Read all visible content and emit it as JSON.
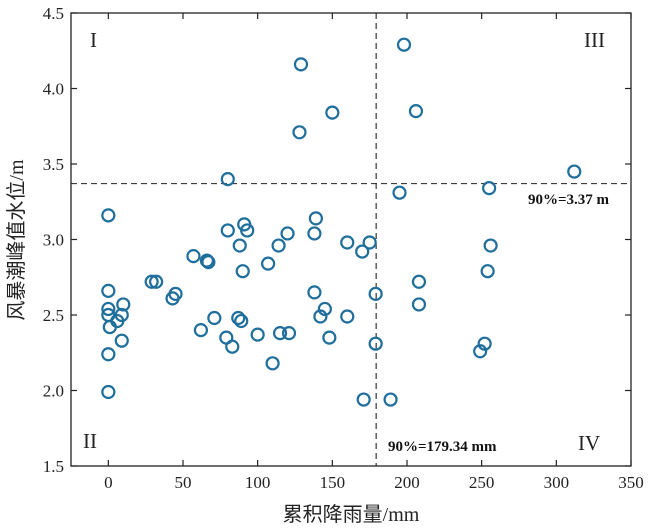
{
  "chart_data": {
    "type": "scatter",
    "xlabel": "累积降雨量/mm",
    "ylabel": "风暴潮峰值水位/m",
    "xlim": [
      -25,
      350
    ],
    "ylim": [
      1.5,
      4.5
    ],
    "xticks": [
      0,
      50,
      100,
      150,
      200,
      250,
      300,
      350
    ],
    "yticks": [
      1.5,
      2.0,
      2.5,
      3.0,
      3.5,
      4.0,
      4.5
    ],
    "grid": false,
    "marker_color": "#1f6e9c",
    "thresholds": {
      "x": 179.34,
      "y": 3.37,
      "x_label": "90%=179.34 mm",
      "y_label": "90%=3.37 m"
    },
    "quadrants": [
      "I",
      "II",
      "III",
      "IV"
    ],
    "points": [
      [
        0,
        3.16
      ],
      [
        0,
        2.66
      ],
      [
        0,
        2.54
      ],
      [
        0,
        2.5
      ],
      [
        1,
        2.42
      ],
      [
        0,
        2.24
      ],
      [
        0,
        1.99
      ],
      [
        6,
        2.46
      ],
      [
        9,
        2.5
      ],
      [
        10,
        2.57
      ],
      [
        9,
        2.33
      ],
      [
        29,
        2.72
      ],
      [
        32,
        2.72
      ],
      [
        43,
        2.61
      ],
      [
        45,
        2.64
      ],
      [
        57,
        2.89
      ],
      [
        62,
        2.4
      ],
      [
        66,
        2.86
      ],
      [
        67,
        2.85
      ],
      [
        71,
        2.48
      ],
      [
        79,
        2.35
      ],
      [
        80,
        3.06
      ],
      [
        80,
        3.4
      ],
      [
        83,
        2.29
      ],
      [
        87,
        2.48
      ],
      [
        88,
        2.96
      ],
      [
        89,
        2.46
      ],
      [
        90,
        2.79
      ],
      [
        91,
        3.1
      ],
      [
        93,
        3.06
      ],
      [
        100,
        2.37
      ],
      [
        107,
        2.84
      ],
      [
        110,
        2.18
      ],
      [
        114,
        2.96
      ],
      [
        115,
        2.38
      ],
      [
        120,
        3.04
      ],
      [
        121,
        2.38
      ],
      [
        128,
        3.71
      ],
      [
        129,
        4.16
      ],
      [
        138,
        2.65
      ],
      [
        138,
        3.04
      ],
      [
        139,
        3.14
      ],
      [
        142,
        2.49
      ],
      [
        145,
        2.54
      ],
      [
        148,
        2.35
      ],
      [
        150,
        3.84
      ],
      [
        160,
        2.98
      ],
      [
        160,
        2.49
      ],
      [
        170,
        2.92
      ],
      [
        171,
        1.94
      ],
      [
        175,
        2.98
      ],
      [
        179,
        2.64
      ],
      [
        179,
        2.31
      ],
      [
        189,
        1.94
      ],
      [
        195,
        3.31
      ],
      [
        198,
        4.29
      ],
      [
        206,
        3.85
      ],
      [
        208,
        2.72
      ],
      [
        208,
        2.57
      ],
      [
        249,
        2.26
      ],
      [
        252,
        2.31
      ],
      [
        254,
        2.79
      ],
      [
        255,
        3.34
      ],
      [
        256,
        2.96
      ],
      [
        312,
        3.45
      ]
    ]
  }
}
